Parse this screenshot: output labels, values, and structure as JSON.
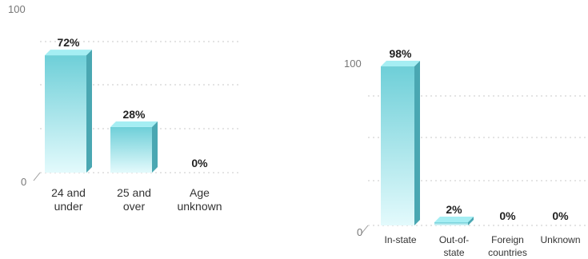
{
  "chart_data": [
    {
      "type": "bar",
      "categories": [
        [
          "24 and",
          "under"
        ],
        [
          "25 and",
          "over"
        ],
        [
          "Age",
          "unknown"
        ]
      ],
      "values": [
        72,
        28,
        0
      ],
      "value_labels": [
        "72%",
        "28%",
        "0%"
      ],
      "ylim": [
        0,
        100
      ],
      "y_ticks": [
        "0",
        "100"
      ],
      "grid": true,
      "colors": {
        "bar_front_top": "#6ecfd8",
        "bar_front_bottom": "#e3fafc",
        "bar_side": "#4aa7b2",
        "bar_top": "#a5eef3"
      }
    },
    {
      "type": "bar",
      "categories": [
        [
          "In-state"
        ],
        [
          "Out-of-",
          "state"
        ],
        [
          "Foreign",
          "countries"
        ],
        [
          "Unknown"
        ]
      ],
      "values": [
        98,
        2,
        0,
        0
      ],
      "value_labels": [
        "98%",
        "2%",
        "0%",
        "0%"
      ],
      "ylim": [
        0,
        100
      ],
      "y_ticks": [
        "0",
        "100"
      ],
      "grid": true,
      "colors": {
        "bar_front_top": "#6ecfd8",
        "bar_front_bottom": "#e3fafc",
        "bar_side": "#4aa7b2",
        "bar_top": "#a5eef3"
      }
    }
  ]
}
